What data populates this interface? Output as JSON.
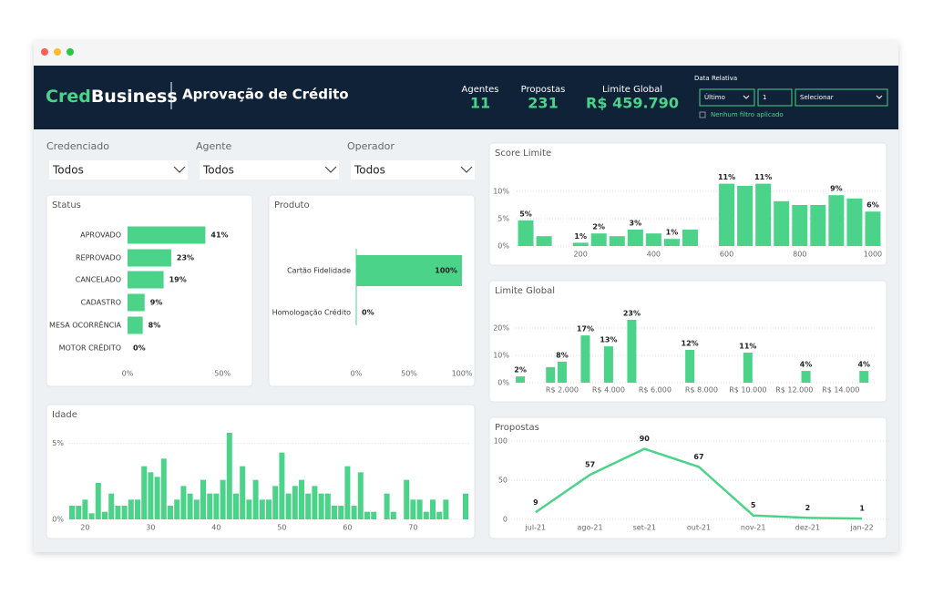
{
  "header": {
    "logo_a": "Cred",
    "logo_b": "Business",
    "title": "Aprovação de Crédito",
    "kpis": [
      {
        "label": "Agentes",
        "value": "11"
      },
      {
        "label": "Propostas",
        "value": "231"
      },
      {
        "label": "Limite Global",
        "value": "R$ 459.790"
      }
    ],
    "date_filter": {
      "label": "Data Relativa",
      "mode": "Último",
      "count": "1",
      "unit": "Selecionar",
      "status": "Nenhum filtro aplicado"
    }
  },
  "filters": [
    {
      "label": "Credenciado",
      "value": "Todos"
    },
    {
      "label": "Agente",
      "value": "Todos"
    },
    {
      "label": "Operador",
      "value": "Todos"
    }
  ],
  "chart_data": [
    {
      "type": "bar",
      "orientation": "horizontal",
      "title": "Status",
      "color": "#4cd38a",
      "categories": [
        "APROVADO",
        "REPROVADO",
        "CANCELADO",
        "CADASTRO",
        "MESA OCORRÊNCIA",
        "MOTOR CRÉDITO"
      ],
      "values": [
        41,
        23,
        19,
        9,
        8,
        0
      ],
      "value_labels": [
        "41%",
        "23%",
        "19%",
        "9%",
        "8%",
        "0%"
      ],
      "xlim": [
        0,
        60
      ],
      "xticks": [
        {
          "value": 0,
          "label": "0%"
        },
        {
          "value": 50,
          "label": "50%"
        }
      ]
    },
    {
      "type": "bar",
      "orientation": "horizontal",
      "title": "Produto",
      "color": "#4cd38a",
      "categories": [
        "Cartão Fidelidade",
        "Homologação Crédito"
      ],
      "values": [
        100,
        0
      ],
      "value_labels": [
        "100%",
        "0%"
      ],
      "xlim": [
        0,
        100
      ],
      "xticks": [
        {
          "value": 0,
          "label": "0%"
        },
        {
          "value": 50,
          "label": "50%"
        },
        {
          "value": 100,
          "label": "100%"
        }
      ]
    },
    {
      "type": "bar",
      "title": "Score Limite",
      "color": "#4cd38a",
      "x": [
        50,
        100,
        200,
        250,
        300,
        350,
        400,
        450,
        500,
        600,
        650,
        700,
        750,
        800,
        850,
        900,
        950,
        1000
      ],
      "values": [
        4.7,
        1.8,
        0.6,
        2.3,
        1.8,
        3.0,
        2.3,
        1.3,
        3.0,
        11.4,
        11.0,
        11.4,
        8.2,
        7.5,
        7.5,
        9.3,
        8.7,
        6.3
      ],
      "value_labels": [
        "5%",
        null,
        "1%",
        "2%",
        null,
        "3%",
        null,
        "1%",
        null,
        "11%",
        null,
        "11%",
        null,
        null,
        null,
        "9%",
        null,
        "6%"
      ],
      "xlim": [
        25,
        1025
      ],
      "xticks": [
        200,
        400,
        600,
        800,
        1000
      ],
      "ylim": [
        0,
        12.5
      ],
      "yticks": [
        {
          "value": 0,
          "label": "0%"
        },
        {
          "value": 5,
          "label": "5%"
        },
        {
          "value": 10,
          "label": "10%"
        }
      ],
      "grid": true
    },
    {
      "type": "bar",
      "title": "Limite Global",
      "color": "#4cd38a",
      "x": [
        200,
        1500,
        2000,
        3000,
        4000,
        5000,
        7500,
        10000,
        12500,
        15000
      ],
      "values": [
        2.3,
        5.7,
        7.7,
        17.3,
        13.3,
        23,
        12,
        11,
        4.3,
        4.3
      ],
      "value_labels": [
        "2%",
        null,
        "8%",
        "17%",
        "13%",
        "23%",
        "12%",
        "11%",
        "4%",
        "4%"
      ],
      "xlim": [
        0,
        15500
      ],
      "xticks": [
        {
          "value": 2000,
          "label": "R$ 2.000"
        },
        {
          "value": 4000,
          "label": "R$ 4.000"
        },
        {
          "value": 6000,
          "label": "R$ 6.000"
        },
        {
          "value": 8000,
          "label": "R$ 8.000"
        },
        {
          "value": 10000,
          "label": "R$ 10.000"
        },
        {
          "value": 12000,
          "label": "R$ 12.000"
        },
        {
          "value": 14000,
          "label": "R$ 14.000"
        }
      ],
      "ylim": [
        0,
        25
      ],
      "yticks": [
        {
          "value": 0,
          "label": "0%"
        },
        {
          "value": 10,
          "label": "10%"
        },
        {
          "value": 20,
          "label": "20%"
        }
      ],
      "grid": true
    },
    {
      "type": "bar",
      "title": "Idade",
      "color": "#4cd38a",
      "x": [
        18,
        19,
        20,
        21,
        22,
        23,
        24,
        25,
        26,
        27,
        28,
        29,
        30,
        31,
        32,
        33,
        34,
        35,
        36,
        37,
        38,
        39,
        40,
        41,
        42,
        43,
        44,
        45,
        46,
        47,
        48,
        49,
        50,
        51,
        52,
        53,
        54,
        55,
        56,
        57,
        58,
        59,
        60,
        61,
        62,
        63,
        64,
        66,
        67,
        69,
        70,
        71,
        72,
        73,
        74,
        75,
        78
      ],
      "values": [
        0.9,
        0.9,
        1.3,
        0.4,
        2.4,
        0.5,
        1.7,
        0.9,
        0.9,
        1.3,
        1.3,
        3.5,
        3.1,
        2.8,
        4.0,
        0.9,
        1.3,
        2.2,
        1.7,
        1.3,
        2.6,
        1.7,
        1.7,
        2.6,
        5.7,
        1.7,
        3.5,
        1.3,
        2.6,
        1.3,
        1.3,
        2.2,
        4.4,
        1.7,
        2.2,
        2.6,
        1.7,
        2.2,
        1.7,
        1.7,
        0.9,
        0.9,
        3.5,
        0.9,
        3.1,
        0.5,
        0.5,
        1.7,
        0.5,
        2.6,
        1.3,
        1.3,
        0.5,
        1.3,
        0.5,
        1.3,
        1.7
      ],
      "xlim": [
        17.5,
        78.5
      ],
      "xticks": [
        20,
        30,
        40,
        50,
        60,
        70
      ],
      "ylim": [
        0,
        6
      ],
      "yticks": [
        {
          "value": 0,
          "label": "0%"
        },
        {
          "value": 5,
          "label": "5%"
        }
      ],
      "grid": true
    },
    {
      "type": "line",
      "title": "Propostas",
      "color": "#4cd38a",
      "categories": [
        "jul-21",
        "ago-21",
        "set-21",
        "out-21",
        "nov-21",
        "dez-21",
        "jan-22"
      ],
      "values": [
        9,
        57,
        90,
        67,
        5,
        2,
        1
      ],
      "ylim": [
        0,
        100
      ],
      "yticks": [
        0,
        50,
        100
      ],
      "grid": true
    }
  ]
}
